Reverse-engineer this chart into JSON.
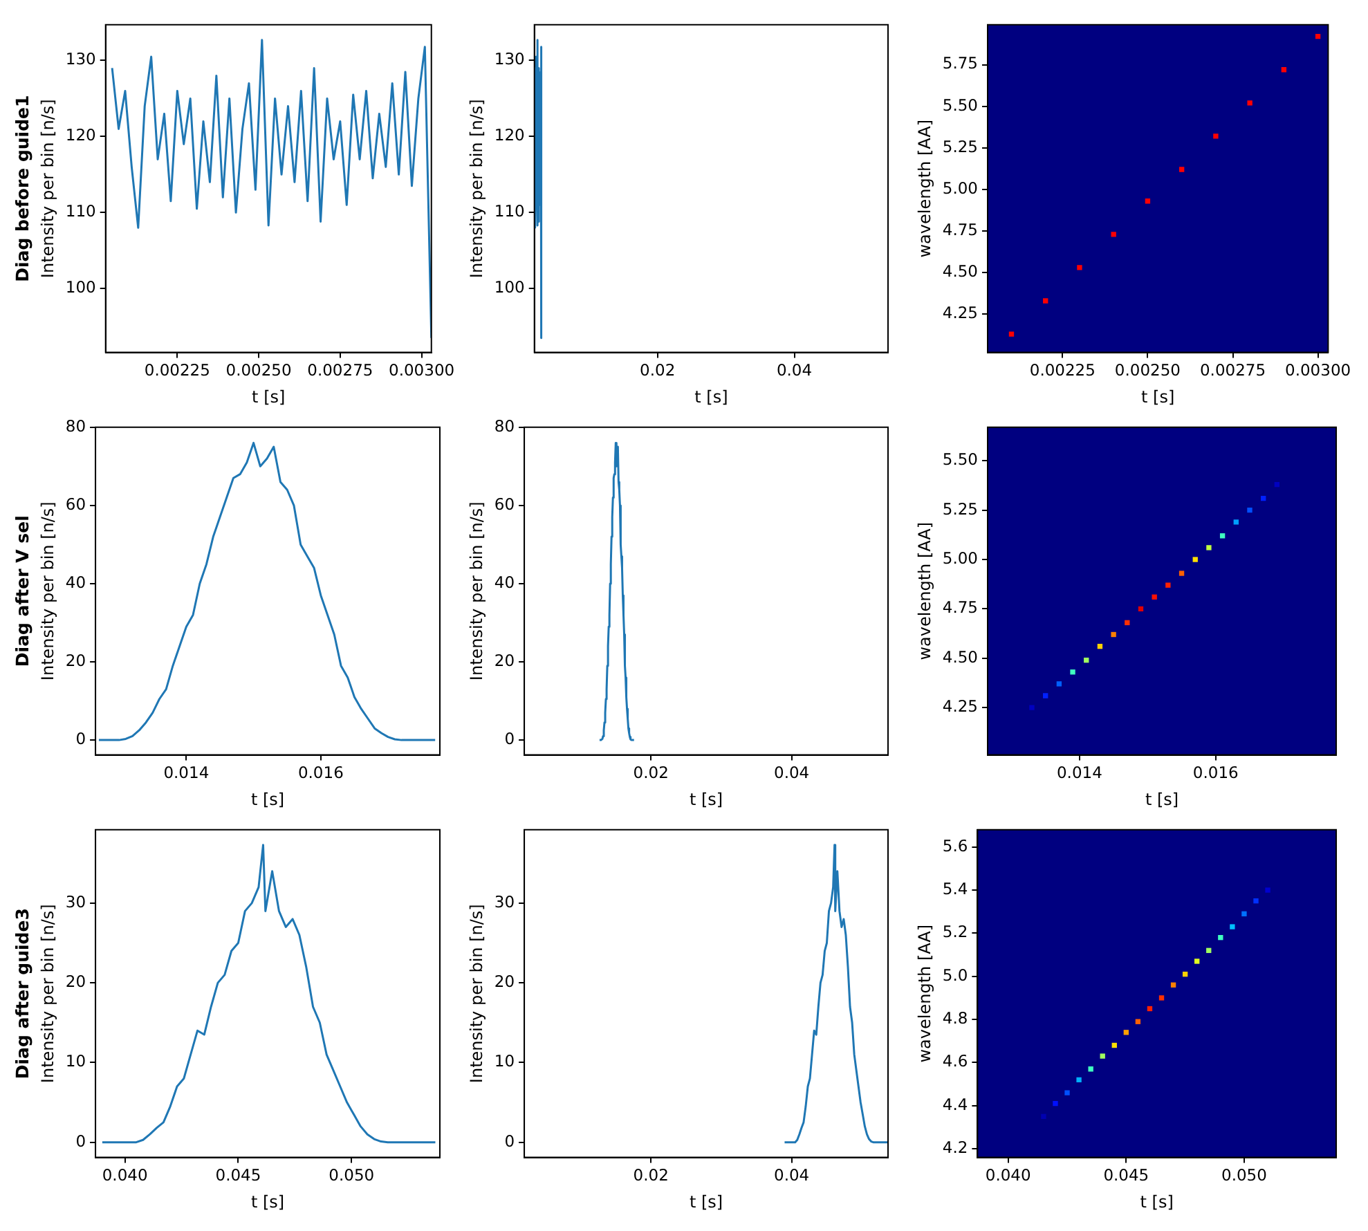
{
  "chart_data": [
    {
      "type": "line",
      "title": "Diag before guide1",
      "xlabel": "t [s]",
      "ylabel": "Intensity per bin [n/s]",
      "xlim": [
        0.00203,
        0.00303
      ],
      "ylim": [
        91.6,
        134.7
      ],
      "xticks": [
        {
          "value": 0.00225,
          "label": "0.00225"
        },
        {
          "value": 0.0025,
          "label": "0.00250"
        },
        {
          "value": 0.00275,
          "label": "0.00275"
        },
        {
          "value": 0.003,
          "label": "0.00300"
        }
      ],
      "yticks": [
        100,
        110,
        120,
        130
      ],
      "series": [
        {
          "color": "#1f77b4",
          "x": [
            0.00205,
            0.00207,
            0.00209,
            0.00211,
            0.00213,
            0.00215,
            0.00217,
            0.00219,
            0.00221,
            0.00223,
            0.00225,
            0.00227,
            0.00229,
            0.00231,
            0.00233,
            0.00235,
            0.00237,
            0.00239,
            0.00241,
            0.00243,
            0.00245,
            0.00247,
            0.00249,
            0.00251,
            0.00253,
            0.00255,
            0.00257,
            0.00259,
            0.00261,
            0.00263,
            0.00265,
            0.00267,
            0.00269,
            0.00271,
            0.00273,
            0.00275,
            0.00277,
            0.00279,
            0.00281,
            0.00283,
            0.00285,
            0.00287,
            0.00289,
            0.00291,
            0.00293,
            0.00295,
            0.00297,
            0.00299,
            0.00301,
            0.00303
          ],
          "values": [
            129,
            121,
            126,
            116,
            108,
            124,
            130.5,
            117,
            123,
            111.5,
            126,
            119,
            125,
            110.5,
            122,
            114,
            128,
            112,
            125,
            110,
            121,
            127,
            113,
            132.7,
            108.3,
            125,
            115,
            124,
            114,
            126,
            111.5,
            129,
            108.8,
            125,
            117,
            122,
            111,
            125.5,
            117,
            126,
            114.5,
            123,
            116,
            127,
            115,
            128.5,
            113.5,
            125,
            131.8,
            93.5
          ]
        }
      ]
    },
    {
      "type": "line",
      "ylabel": "Intensity per bin [n/s]",
      "xlabel": "t [s]",
      "xlim": [
        0.002,
        0.0537
      ],
      "ylim": [
        91.6,
        134.7
      ],
      "xticks": [
        0.02,
        0.04
      ],
      "yticks": [
        100,
        110,
        120,
        130
      ],
      "series": [
        {
          "color": "#1f77b4",
          "x": [
            0.00205,
            0.00207,
            0.00209,
            0.00211,
            0.00213,
            0.00215,
            0.00217,
            0.00219,
            0.00221,
            0.00223,
            0.00225,
            0.00227,
            0.00229,
            0.00231,
            0.00233,
            0.00235,
            0.00237,
            0.00239,
            0.00241,
            0.00243,
            0.00245,
            0.00247,
            0.00249,
            0.00251,
            0.00253,
            0.00255,
            0.00257,
            0.00259,
            0.00261,
            0.00263,
            0.00265,
            0.00267,
            0.00269,
            0.00271,
            0.00273,
            0.00275,
            0.00277,
            0.00279,
            0.00281,
            0.00283,
            0.00285,
            0.00287,
            0.00289,
            0.00291,
            0.00293,
            0.00295,
            0.00297,
            0.00299,
            0.00301,
            0.00303
          ],
          "values": [
            129,
            121,
            126,
            116,
            108,
            124,
            130.5,
            117,
            123,
            111.5,
            126,
            119,
            125,
            110.5,
            122,
            114,
            128,
            112,
            125,
            110,
            121,
            127,
            113,
            132.7,
            108.3,
            125,
            115,
            124,
            114,
            126,
            111.5,
            129,
            108.8,
            125,
            117,
            122,
            111,
            125.5,
            117,
            126,
            114.5,
            123,
            116,
            127,
            115,
            128.5,
            113.5,
            125,
            131.8,
            93.5
          ]
        }
      ]
    },
    {
      "type": "scatter",
      "marker": "square",
      "xlabel": "t [s]",
      "ylabel": "wavelength [AA]",
      "xlim": [
        0.00203,
        0.00303
      ],
      "ylim": [
        4.02,
        5.99
      ],
      "xticks": [
        {
          "value": 0.00225,
          "label": "0.00225"
        },
        {
          "value": 0.0025,
          "label": "0.00250"
        },
        {
          "value": 0.00275,
          "label": "0.00275"
        },
        {
          "value": 0.003,
          "label": "0.00300"
        }
      ],
      "yticks": [
        4.25,
        {
          "value": 4.5,
          "label": "4.50"
        },
        4.75,
        {
          "value": 5,
          "label": "5.00"
        },
        5.25,
        {
          "value": 5.5,
          "label": "5.50"
        },
        5.75
      ],
      "series": [
        {
          "color": "#ff0000",
          "x": [
            0.0021,
            0.0022,
            0.0023,
            0.0024,
            0.0025,
            0.0026,
            0.0027,
            0.0028,
            0.0029,
            0.003
          ],
          "values": [
            4.13,
            4.33,
            4.53,
            4.73,
            4.93,
            5.12,
            5.32,
            5.52,
            5.72,
            5.92
          ]
        }
      ]
    },
    {
      "type": "line",
      "title": "Diag after V sel",
      "xlabel": "t [s]",
      "ylabel": "Intensity per bin [n/s]",
      "xlim": [
        0.01265,
        0.01777
      ],
      "ylim": [
        -3.8,
        80
      ],
      "xticks": [
        0.014,
        0.016
      ],
      "yticks": [
        0,
        20,
        40,
        60,
        80
      ],
      "series": [
        {
          "color": "#1f77b4",
          "x": [
            0.0127,
            0.0128,
            0.0129,
            0.013,
            0.0131,
            0.0132,
            0.0133,
            0.0134,
            0.0135,
            0.0136,
            0.0137,
            0.0138,
            0.0139,
            0.014,
            0.0141,
            0.0142,
            0.0143,
            0.0144,
            0.0145,
            0.0146,
            0.0147,
            0.0148,
            0.0149,
            0.015,
            0.0151,
            0.0152,
            0.0153,
            0.0154,
            0.0155,
            0.0156,
            0.0157,
            0.0158,
            0.0159,
            0.016,
            0.0161,
            0.0162,
            0.0163,
            0.0164,
            0.0165,
            0.0166,
            0.0167,
            0.0168,
            0.0169,
            0.017,
            0.0171,
            0.0172,
            0.0173,
            0.0174,
            0.0175,
            0.0176,
            0.0177
          ],
          "values": [
            0,
            0,
            0,
            0,
            0.3,
            1,
            2.5,
            4.5,
            7,
            10.5,
            13,
            19,
            24,
            29,
            32,
            40,
            45,
            52,
            57,
            62,
            67,
            68,
            71,
            76,
            70,
            72,
            75,
            66,
            64,
            60,
            50,
            47,
            44,
            37,
            32,
            27,
            19,
            16,
            11,
            8,
            5.5,
            3,
            1.8,
            0.8,
            0.2,
            0,
            0,
            0,
            0,
            0,
            0
          ]
        }
      ]
    },
    {
      "type": "line",
      "xlabel": "t [s]",
      "ylabel": "Intensity per bin [n/s]",
      "xlim": [
        0.002,
        0.0537
      ],
      "ylim": [
        -3.8,
        80
      ],
      "xticks": [
        0.02,
        0.04
      ],
      "yticks": [
        0,
        20,
        40,
        60,
        80
      ],
      "series": [
        {
          "color": "#1f77b4",
          "x": [
            0.0127,
            0.0128,
            0.0129,
            0.013,
            0.0131,
            0.0132,
            0.0133,
            0.0134,
            0.0135,
            0.0136,
            0.0137,
            0.0138,
            0.0139,
            0.014,
            0.0141,
            0.0142,
            0.0143,
            0.0144,
            0.0145,
            0.0146,
            0.0147,
            0.0148,
            0.0149,
            0.015,
            0.0151,
            0.0152,
            0.0153,
            0.0154,
            0.0155,
            0.0156,
            0.0157,
            0.0158,
            0.0159,
            0.016,
            0.0161,
            0.0162,
            0.0163,
            0.0164,
            0.0165,
            0.0166,
            0.0167,
            0.0168,
            0.0169,
            0.017,
            0.0171,
            0.0172,
            0.0173,
            0.0174,
            0.0175,
            0.0176,
            0.0177
          ],
          "values": [
            0,
            0,
            0,
            0,
            0.3,
            1,
            2.5,
            4.5,
            7,
            10.5,
            13,
            19,
            24,
            29,
            32,
            40,
            45,
            52,
            57,
            62,
            67,
            68,
            71,
            76,
            70,
            72,
            75,
            66,
            64,
            60,
            50,
            47,
            44,
            37,
            32,
            27,
            19,
            16,
            11,
            8,
            5.5,
            3,
            1.8,
            0.8,
            0.2,
            0,
            0,
            0,
            0,
            0,
            0
          ]
        }
      ]
    },
    {
      "type": "scatter",
      "marker": "square",
      "xlabel": "t [s]",
      "ylabel": "wavelength [AA]",
      "xlim": [
        0.01265,
        0.01777
      ],
      "ylim": [
        4.01,
        5.67
      ],
      "xticks": [
        0.014,
        0.016
      ],
      "yticks": [
        4.25,
        {
          "value": 4.5,
          "label": "4.50"
        },
        4.75,
        {
          "value": 5,
          "label": "5.00"
        },
        5.25,
        {
          "value": 5.5,
          "label": "5.50"
        }
      ],
      "series": [
        {
          "x": [
            0.0133,
            0.0135,
            0.0137,
            0.0139,
            0.0141,
            0.0143,
            0.0145,
            0.0147,
            0.0149,
            0.0151,
            0.0153,
            0.0155,
            0.0157,
            0.0159,
            0.0161,
            0.0163,
            0.0165,
            0.0167,
            0.0169
          ],
          "values": [
            4.25,
            4.31,
            4.37,
            4.43,
            4.49,
            4.56,
            4.62,
            4.68,
            4.75,
            4.81,
            4.87,
            4.93,
            5.0,
            5.06,
            5.12,
            5.19,
            5.25,
            5.31,
            5.38
          ],
          "colors": [
            "#0000c0",
            "#0020ff",
            "#0060ff",
            "#40ffc0",
            "#a0ff60",
            "#ffd000",
            "#ff8000",
            "#ff3000",
            "#e00000",
            "#ff1000",
            "#ff2000",
            "#ff6000",
            "#ffe000",
            "#c0ff40",
            "#40ffc0",
            "#00a0ff",
            "#0050ff",
            "#0020ff",
            "#0000c0"
          ]
        }
      ]
    },
    {
      "type": "line",
      "title": "Diag after guide3",
      "xlabel": "t [s]",
      "ylabel": "Intensity per bin [n/s]",
      "xlim": [
        0.0387,
        0.0539
      ],
      "ylim": [
        -1.9,
        39.2
      ],
      "xticks": [
        {
          "value": 0.04,
          "label": "0.040"
        },
        0.045,
        {
          "value": 0.05,
          "label": "0.050"
        }
      ],
      "yticks": [
        0,
        10,
        20,
        30
      ],
      "series": [
        {
          "color": "#1f77b4",
          "x": [
            0.039,
            0.0393,
            0.0396,
            0.0399,
            0.0402,
            0.0405,
            0.0408,
            0.0411,
            0.0414,
            0.0417,
            0.042,
            0.0423,
            0.0426,
            0.0429,
            0.0432,
            0.0435,
            0.0438,
            0.0441,
            0.0444,
            0.0447,
            0.045,
            0.0453,
            0.0456,
            0.0459,
            0.0461,
            0.0462,
            0.0465,
            0.0468,
            0.0471,
            0.0474,
            0.0477,
            0.048,
            0.0483,
            0.0486,
            0.0489,
            0.0492,
            0.0495,
            0.0498,
            0.0501,
            0.0504,
            0.0507,
            0.051,
            0.0513,
            0.0516,
            0.0519,
            0.0522,
            0.0525,
            0.0528,
            0.0531,
            0.0534,
            0.0537
          ],
          "values": [
            0,
            0,
            0,
            0,
            0,
            0,
            0.3,
            1,
            1.8,
            2.5,
            4.5,
            7,
            8,
            11,
            14,
            13.5,
            17,
            20,
            21,
            24,
            25,
            29,
            30,
            32,
            37.3,
            29,
            34,
            29,
            27,
            28,
            26,
            22,
            17,
            15,
            11,
            9,
            7,
            5,
            3.5,
            2,
            1,
            0.4,
            0.1,
            0,
            0,
            0,
            0,
            0,
            0,
            0,
            0
          ]
        }
      ]
    },
    {
      "type": "line",
      "xlabel": "t [s]",
      "ylabel": "Intensity per bin [n/s]",
      "xlim": [
        0.002,
        0.0537
      ],
      "ylim": [
        -1.9,
        39.2
      ],
      "xticks": [
        0.02,
        0.04
      ],
      "yticks": [
        0,
        10,
        20,
        30
      ],
      "series": [
        {
          "color": "#1f77b4",
          "x": [
            0.039,
            0.0393,
            0.0396,
            0.0399,
            0.0402,
            0.0405,
            0.0408,
            0.0411,
            0.0414,
            0.0417,
            0.042,
            0.0423,
            0.0426,
            0.0429,
            0.0432,
            0.0435,
            0.0438,
            0.0441,
            0.0444,
            0.0447,
            0.045,
            0.0453,
            0.0456,
            0.0459,
            0.0461,
            0.0462,
            0.0465,
            0.0468,
            0.0471,
            0.0474,
            0.0477,
            0.048,
            0.0483,
            0.0486,
            0.0489,
            0.0492,
            0.0495,
            0.0498,
            0.0501,
            0.0504,
            0.0507,
            0.051,
            0.0513,
            0.0516,
            0.0519,
            0.0522,
            0.0525,
            0.0528,
            0.0531,
            0.0534,
            0.0537
          ],
          "values": [
            0,
            0,
            0,
            0,
            0,
            0,
            0.3,
            1,
            1.8,
            2.5,
            4.5,
            7,
            8,
            11,
            14,
            13.5,
            17,
            20,
            21,
            24,
            25,
            29,
            30,
            32,
            37.3,
            29,
            34,
            29,
            27,
            28,
            26,
            22,
            17,
            15,
            11,
            9,
            7,
            5,
            3.5,
            2,
            1,
            0.4,
            0.1,
            0,
            0,
            0,
            0,
            0,
            0,
            0,
            0
          ]
        }
      ]
    },
    {
      "type": "scatter",
      "marker": "square",
      "xlabel": "t [s]",
      "ylabel": "wavelength [AA]",
      "xlim": [
        0.0387,
        0.0539
      ],
      "ylim": [
        4.16,
        5.68
      ],
      "xticks": [
        {
          "value": 0.04,
          "label": "0.040"
        },
        0.045,
        {
          "value": 0.05,
          "label": "0.050"
        }
      ],
      "yticks": [
        4.2,
        4.4,
        4.6,
        4.8,
        {
          "value": 5,
          "label": "5.0"
        },
        5.2,
        5.4,
        5.6
      ],
      "series": [
        {
          "x": [
            0.0415,
            0.042,
            0.0425,
            0.043,
            0.0435,
            0.044,
            0.0445,
            0.045,
            0.0455,
            0.046,
            0.0465,
            0.047,
            0.0475,
            0.048,
            0.0485,
            0.049,
            0.0495,
            0.05,
            0.0505,
            0.051
          ],
          "values": [
            4.35,
            4.41,
            4.46,
            4.52,
            4.57,
            4.63,
            4.68,
            4.74,
            4.79,
            4.85,
            4.9,
            4.96,
            5.01,
            5.07,
            5.12,
            5.18,
            5.23,
            5.29,
            5.35,
            5.4
          ],
          "colors": [
            "#0000b0",
            "#0010ff",
            "#0050ff",
            "#00b0ff",
            "#40ffc0",
            "#a0ff60",
            "#ffe000",
            "#ffa000",
            "#ff6000",
            "#ff2000",
            "#ff3000",
            "#ff8000",
            "#ffd000",
            "#e0ff20",
            "#a0ff60",
            "#40ffc0",
            "#00c0ff",
            "#0070ff",
            "#0030ff",
            "#0000d0"
          ]
        }
      ]
    }
  ]
}
